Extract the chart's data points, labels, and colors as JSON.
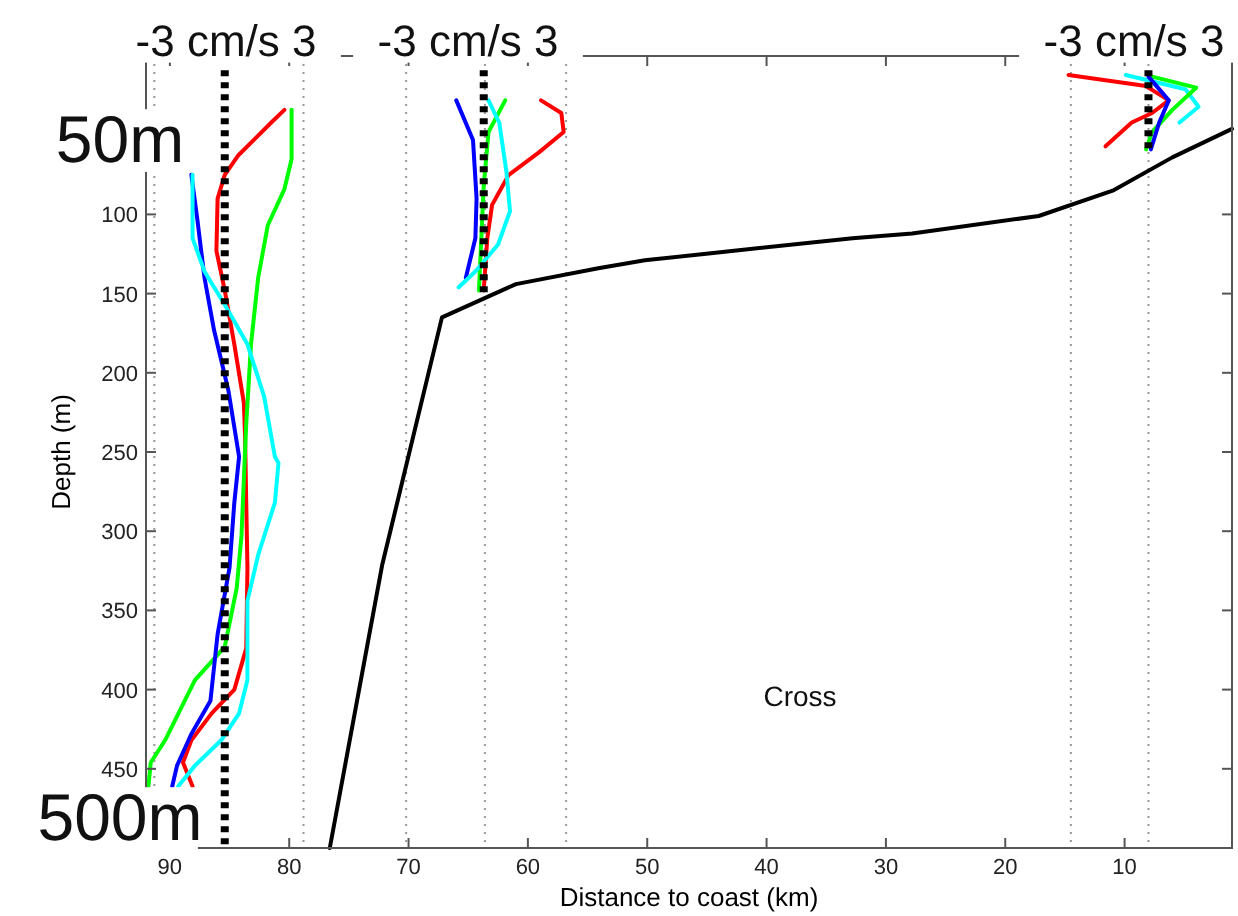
{
  "chart_data": {
    "type": "line",
    "xlabel": "Distance to coast (km)",
    "ylabel": "Depth (m)",
    "xlim": [
      92,
      1
    ],
    "ylim": [
      500,
      0
    ],
    "xticks": [
      90,
      80,
      70,
      60,
      50,
      40,
      30,
      20,
      10
    ],
    "yticks": [
      100,
      150,
      200,
      250,
      300,
      350,
      400,
      450
    ],
    "series": [
      {
        "color": "#000000",
        "x": [
          76.6,
          72.2,
          67.2,
          61.0,
          54.1,
          50.2,
          32.8,
          27.8,
          17.2,
          11.0,
          6.0,
          1.0
        ],
        "values": [
          500,
          321,
          165,
          144,
          134,
          129,
          115,
          112,
          101,
          85,
          64,
          46
        ]
      },
      {
        "color": "#ff0000",
        "x": [
          80.4,
          81.5,
          84.3,
          85.4,
          86.0,
          86.1,
          85.4,
          84.6,
          83.8,
          83.7,
          83.6,
          83.5,
          83.6,
          84.6,
          86.5,
          88.2,
          88.9,
          88.1
        ],
        "values": [
          34,
          42,
          63,
          75,
          90,
          123,
          148,
          182,
          219,
          240,
          282,
          323,
          374,
          400,
          415,
          432,
          446,
          461
        ]
      },
      {
        "color": "#00ff00",
        "x": [
          79.8,
          79.8,
          80.4,
          81.8,
          82.6,
          83.2,
          83.6,
          84.0,
          84.4,
          85.4,
          87.9,
          90.4,
          91.6,
          91.8
        ],
        "values": [
          34,
          65,
          84,
          107,
          140,
          182,
          232,
          303,
          336,
          373,
          394,
          432,
          446,
          461
        ]
      },
      {
        "color": "#0000ff",
        "x": [
          88.2,
          87.7,
          87.1,
          86.3,
          85.1,
          84.2,
          84.6,
          85.0,
          86.0,
          86.6,
          88.2,
          89.4,
          89.8
        ],
        "values": [
          75,
          103,
          140,
          173,
          211,
          253,
          282,
          323,
          365,
          407,
          428,
          448,
          461
        ]
      },
      {
        "color": "#00ffff",
        "x": [
          88.1,
          88.1,
          87.1,
          85.4,
          83.5,
          82.1,
          81.2,
          80.9,
          81.2,
          82.6,
          83.5,
          83.5,
          84.2,
          85.7,
          87.9,
          89.3
        ],
        "values": [
          75,
          115,
          136,
          157,
          182,
          215,
          253,
          257,
          282,
          315,
          344,
          394,
          415,
          432,
          448,
          461
        ]
      },
      {
        "color": "#ff0000",
        "x": [
          58.9,
          57.2,
          57.0,
          59.1,
          61.6,
          63.0,
          63.4,
          63.7
        ],
        "values": [
          28,
          36,
          48,
          61,
          75,
          94,
          115,
          148
        ]
      },
      {
        "color": "#00ff00",
        "x": [
          61.9,
          63.3,
          63.7,
          63.9,
          64.1
        ],
        "values": [
          28,
          48,
          82,
          115,
          148
        ]
      },
      {
        "color": "#0000ff",
        "x": [
          66.0,
          64.6,
          64.3,
          64.4,
          65.2
        ],
        "values": [
          28,
          53,
          90,
          115,
          140
        ]
      },
      {
        "color": "#00ffff",
        "x": [
          63.3,
          62.4,
          61.8,
          61.5,
          62.5,
          64.4,
          65.8
        ],
        "values": [
          28,
          42,
          73,
          98,
          119,
          136,
          146
        ]
      },
      {
        "color": "#ff0000",
        "x": [
          14.7,
          8.2,
          6.3,
          7.7,
          9.4,
          11.6
        ],
        "values": [
          12,
          19,
          28,
          36,
          42,
          57
        ]
      },
      {
        "color": "#00ffff",
        "x": [
          9.9,
          4.9,
          3.8,
          5.4
        ],
        "values": [
          12,
          21,
          32,
          42
        ]
      },
      {
        "color": "#00ff00",
        "x": [
          7.7,
          4.0,
          6.0,
          7.7,
          8.2
        ],
        "values": [
          13,
          20,
          34,
          48,
          59
        ]
      },
      {
        "color": "#0000ff",
        "x": [
          8.0,
          6.3,
          7.1,
          7.8
        ],
        "values": [
          13,
          28,
          42,
          59
        ]
      },
      {
        "color": "#000000",
        "line_style": "dotted",
        "x": [
          85.4,
          85.4
        ],
        "values": [
          9,
          500
        ]
      },
      {
        "color": "#000000",
        "line_style": "dotted",
        "x": [
          63.7,
          63.7
        ],
        "values": [
          9,
          150
        ]
      },
      {
        "color": "#000000",
        "line_style": "dotted",
        "x": [
          8.0,
          8.0
        ],
        "values": [
          9,
          60
        ]
      }
    ],
    "ref_lines": [
      {
        "axis": "x",
        "value": 91.3,
        "color": "#999999",
        "line_style": "dotted"
      },
      {
        "axis": "x",
        "value": 78.8,
        "color": "#999999",
        "line_style": "dotted"
      },
      {
        "axis": "x",
        "value": 70.2,
        "color": "#999999",
        "line_style": "dotted"
      },
      {
        "axis": "x",
        "value": 63.6,
        "color": "#999999",
        "line_style": "dotted"
      },
      {
        "axis": "x",
        "value": 56.8,
        "color": "#999999",
        "line_style": "dotted"
      },
      {
        "axis": "x",
        "value": 14.5,
        "color": "#999999",
        "line_style": "dotted"
      },
      {
        "axis": "x",
        "value": 8.0,
        "color": "#999999",
        "line_style": "dotted"
      }
    ],
    "annotations": [
      "-3 cm/s 3",
      "-3 cm/s 3",
      "-3 cm/s 3",
      "50m",
      "500m",
      "Cross"
    ]
  }
}
